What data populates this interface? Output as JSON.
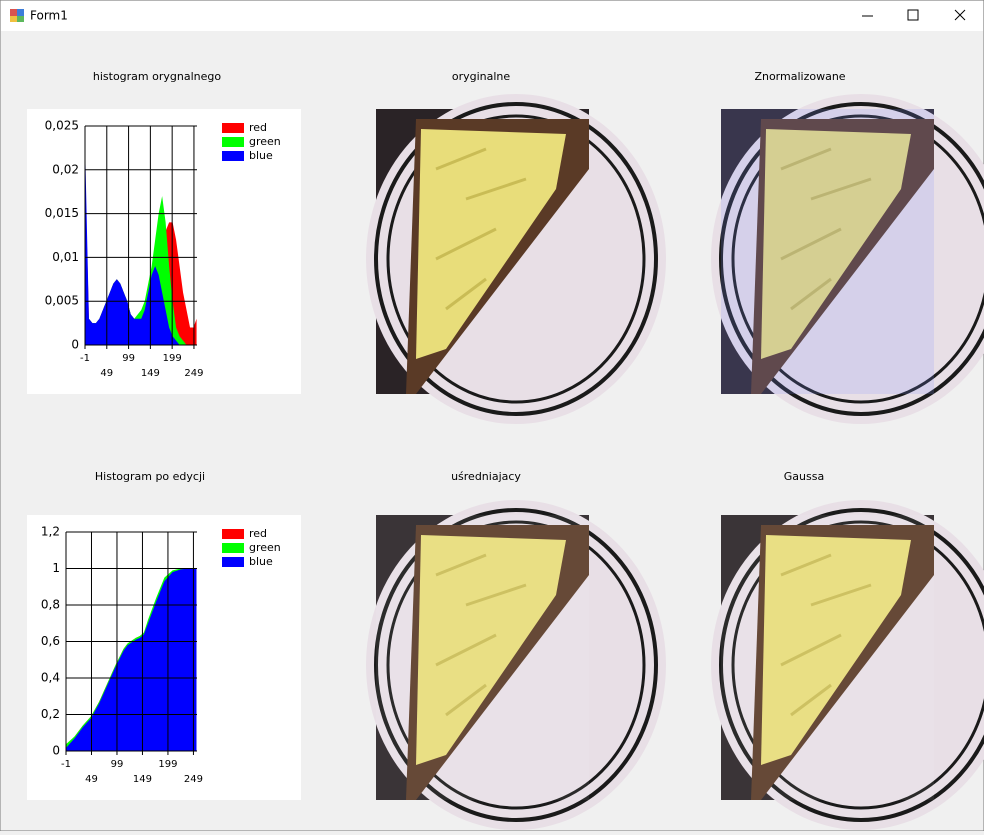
{
  "window": {
    "title": "Form1"
  },
  "labels": [
    "histogram orygnalnego",
    "oryginalne",
    "Znormalizowane",
    "Histogram po edycji",
    "uśredniajacy",
    "Gaussa"
  ],
  "charts": [
    {
      "type": "area",
      "x": [
        0,
        8,
        16,
        24,
        32,
        40,
        48,
        56,
        64,
        72,
        80,
        88,
        96,
        104,
        112,
        120,
        128,
        136,
        144,
        152,
        160,
        168,
        176,
        184,
        192,
        200,
        208,
        216,
        224,
        232,
        240,
        248,
        255
      ],
      "series": [
        {
          "name": "red",
          "color": "#ff0000",
          "values": [
            0.018,
            0.003,
            0.0025,
            0.0025,
            0.003,
            0.004,
            0.005,
            0.006,
            0.007,
            0.0075,
            0.007,
            0.006,
            0.005,
            0.0035,
            0.003,
            0.003,
            0.003,
            0.004,
            0.006,
            0.008,
            0.009,
            0.01,
            0.012,
            0.013,
            0.014,
            0.014,
            0.012,
            0.009,
            0.006,
            0.004,
            0.002,
            0.002,
            0.003
          ]
        },
        {
          "name": "green",
          "color": "#00ff00",
          "values": [
            0.009,
            0.003,
            0.0025,
            0.0025,
            0.003,
            0.004,
            0.005,
            0.006,
            0.007,
            0.0075,
            0.007,
            0.006,
            0.005,
            0.0035,
            0.003,
            0.0035,
            0.004,
            0.005,
            0.007,
            0.009,
            0.012,
            0.015,
            0.017,
            0.014,
            0.009,
            0.005,
            0.002,
            0.001,
            0.0005,
            0,
            0,
            0,
            0
          ]
        },
        {
          "name": "blue",
          "color": "#0000ff",
          "values": [
            0.021,
            0.003,
            0.0025,
            0.0025,
            0.003,
            0.004,
            0.005,
            0.006,
            0.007,
            0.0075,
            0.007,
            0.006,
            0.005,
            0.0035,
            0.003,
            0.003,
            0.003,
            0.004,
            0.006,
            0.008,
            0.009,
            0.008,
            0.006,
            0.004,
            0.002,
            0.001,
            0.0005,
            0,
            0,
            0,
            0,
            0,
            0
          ]
        }
      ],
      "xlim": [
        -1,
        256
      ],
      "ylim": [
        0,
        0.025
      ],
      "xticks": [
        -1,
        49,
        99,
        149,
        199,
        249
      ],
      "yticks": [
        0,
        {
          "value": 0.005,
          "label": "0,005"
        },
        {
          "value": 0.01,
          "label": "0,01"
        },
        {
          "value": 0.015,
          "label": "0,015"
        },
        {
          "value": 0.02,
          "label": "0,02"
        },
        {
          "value": 0.025,
          "label": "0,025"
        }
      ],
      "grid": true,
      "legend": "right"
    },
    {
      "type": "area",
      "x": [
        0,
        16,
        32,
        48,
        64,
        80,
        96,
        112,
        120,
        136,
        144,
        152,
        160,
        176,
        192,
        208,
        224,
        240,
        255
      ],
      "series": [
        {
          "name": "red",
          "color": "#ff0000",
          "values": [
            0.03,
            0.08,
            0.14,
            0.19,
            0.27,
            0.37,
            0.47,
            0.56,
            0.59,
            0.62,
            0.63,
            0.65,
            0.71,
            0.83,
            0.94,
            0.985,
            0.997,
            1,
            1
          ]
        },
        {
          "name": "green",
          "color": "#00ff00",
          "values": [
            0.04,
            0.08,
            0.14,
            0.19,
            0.27,
            0.37,
            0.47,
            0.56,
            0.59,
            0.62,
            0.63,
            0.65,
            0.72,
            0.84,
            0.95,
            0.99,
            1,
            1,
            1
          ]
        },
        {
          "name": "blue",
          "color": "#0000ff",
          "values": [
            0.02,
            0.07,
            0.13,
            0.18,
            0.26,
            0.36,
            0.46,
            0.55,
            0.58,
            0.61,
            0.62,
            0.64,
            0.7,
            0.82,
            0.93,
            0.98,
            0.995,
            1,
            1
          ]
        }
      ],
      "xlim": [
        -1,
        256
      ],
      "ylim": [
        0,
        1.2
      ],
      "xticks": [
        -1,
        49,
        99,
        149,
        199,
        249
      ],
      "yticks": [
        0,
        {
          "value": 0.2,
          "label": "0,2"
        },
        {
          "value": 0.4,
          "label": "0,4"
        },
        {
          "value": 0.6,
          "label": "0,6"
        },
        {
          "value": 0.8,
          "label": "0,8"
        },
        1,
        {
          "value": 1.2,
          "label": "1,2"
        }
      ],
      "grid": true,
      "legend": "right"
    }
  ]
}
